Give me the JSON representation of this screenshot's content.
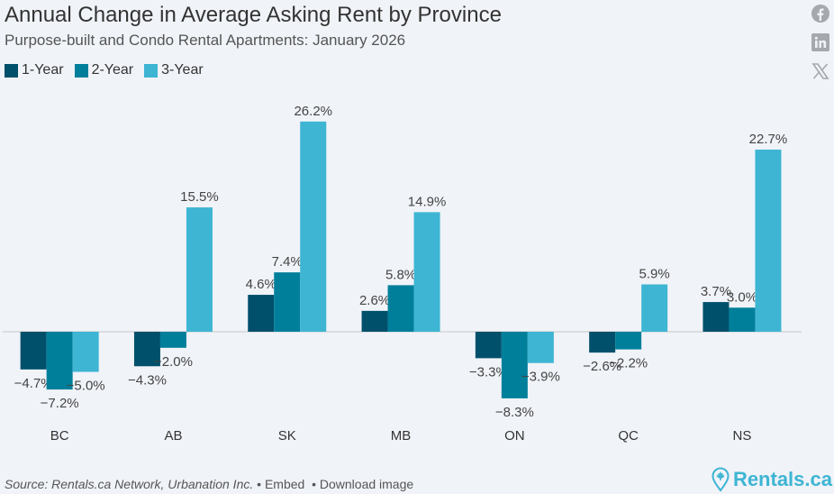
{
  "header": {
    "title": "Annual Change in Average Asking Rent by Province",
    "subtitle": "Purpose-built and Condo Rental Apartments: January 2026"
  },
  "social": [
    "facebook-icon",
    "linkedin-icon",
    "x-icon"
  ],
  "footer": {
    "source": "Source: Rentals.ca Network, Urbanation Inc.",
    "embed": "Embed",
    "download": "Download image",
    "brand": "Rentals.ca"
  },
  "chart_data": {
    "type": "bar",
    "title": "Annual Change in Average Asking Rent by Province",
    "subtitle": "Purpose-built and Condo Rental Apartments: January 2026",
    "categories": [
      "BC",
      "AB",
      "SK",
      "MB",
      "ON",
      "QC",
      "NS"
    ],
    "series": [
      {
        "name": "1-Year",
        "color": "#00506b",
        "values": [
          -4.7,
          -4.3,
          4.6,
          2.6,
          -3.3,
          -2.6,
          3.7
        ]
      },
      {
        "name": "2-Year",
        "color": "#007f9b",
        "values": [
          -7.2,
          -2.0,
          7.4,
          5.8,
          -8.3,
          -2.2,
          3.0
        ]
      },
      {
        "name": "3-Year",
        "color": "#3db5d3",
        "values": [
          -5.0,
          15.5,
          26.2,
          14.9,
          -3.9,
          5.9,
          22.7
        ]
      }
    ],
    "ylim": [
      -11,
      30
    ],
    "legend": "top-left",
    "grid": false,
    "value_suffix": "%"
  }
}
